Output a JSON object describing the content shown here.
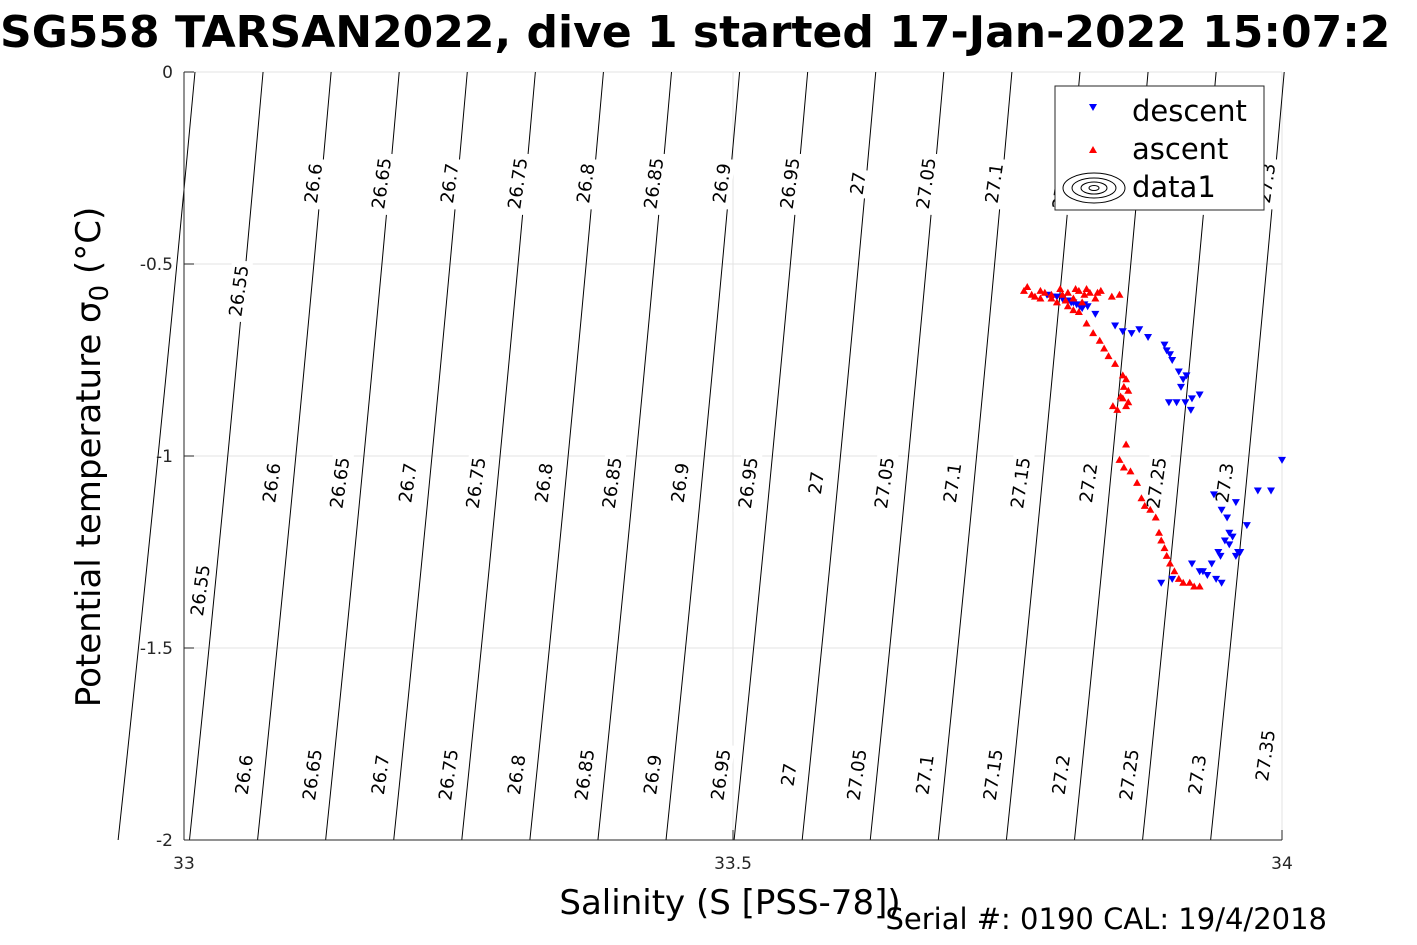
{
  "chart_data": {
    "type": "scatter",
    "title": "SG558 TARSAN2022, dive 1 started 17-Jan-2022 15:07:2",
    "xlabel": "Salinity (S [PSS-78])",
    "ylabel_main": "Potential temperature σ",
    "ylabel_sub": "0",
    "ylabel_unit": " (°C)",
    "xlim": [
      33,
      34
    ],
    "ylim": [
      -2,
      0
    ],
    "xticks": [
      33,
      33.5,
      34
    ],
    "xtick_labels": [
      "33",
      "33.5",
      "34"
    ],
    "yticks": [
      0,
      -0.5,
      -1,
      -1.5,
      -2
    ],
    "ytick_labels": [
      "0",
      "-0.5",
      "-1",
      "-1.5",
      "-2"
    ],
    "grid": true,
    "legend_position": "top-right",
    "legend": [
      "descent",
      "ascent",
      "data1"
    ],
    "contours": {
      "levels": [
        26.55,
        26.6,
        26.65,
        26.7,
        26.75,
        26.8,
        26.85,
        26.9,
        26.95,
        27,
        27.05,
        27.1,
        27.15,
        27.2,
        27.25,
        27.3,
        27.35
      ],
      "level_labels": [
        "26.55",
        "26.6",
        "26.65",
        "26.7",
        "26.75",
        "26.8",
        "26.85",
        "26.9",
        "26.95",
        "27",
        "27.05",
        "27.1",
        "27.15",
        "27.2",
        "27.25",
        "27.3",
        "27.35"
      ],
      "lines": [
        {
          "level": 26.55,
          "x_top": 33.01,
          "x_bottom": 32.94
        },
        {
          "level": 26.6,
          "x_top": 33.072,
          "x_bottom": 33.005
        },
        {
          "level": 26.65,
          "x_top": 33.134,
          "x_bottom": 33.067
        },
        {
          "level": 26.7,
          "x_top": 33.196,
          "x_bottom": 33.129
        },
        {
          "level": 26.75,
          "x_top": 33.258,
          "x_bottom": 33.191
        },
        {
          "level": 26.8,
          "x_top": 33.32,
          "x_bottom": 33.253
        },
        {
          "level": 26.85,
          "x_top": 33.382,
          "x_bottom": 33.315
        },
        {
          "level": 26.9,
          "x_top": 33.444,
          "x_bottom": 33.377
        },
        {
          "level": 26.95,
          "x_top": 33.506,
          "x_bottom": 33.439
        },
        {
          "level": 27,
          "x_top": 33.568,
          "x_bottom": 33.501
        },
        {
          "level": 27.05,
          "x_top": 33.63,
          "x_bottom": 33.563
        },
        {
          "level": 27.1,
          "x_top": 33.692,
          "x_bottom": 33.625
        },
        {
          "level": 27.15,
          "x_top": 33.754,
          "x_bottom": 33.687
        },
        {
          "level": 27.2,
          "x_top": 33.816,
          "x_bottom": 33.749
        },
        {
          "level": 27.25,
          "x_top": 33.878,
          "x_bottom": 33.811
        },
        {
          "level": 27.3,
          "x_top": 33.94,
          "x_bottom": 33.873
        },
        {
          "level": 27.35,
          "x_top": 34.002,
          "x_bottom": 33.935
        }
      ],
      "labels": [
        {
          "text": "26.55",
          "s": 33.05,
          "t": -0.57
        },
        {
          "text": "26.6",
          "s": 33.118,
          "t": -0.29
        },
        {
          "text": "26.65",
          "s": 33.18,
          "t": -0.29
        },
        {
          "text": "26.7",
          "s": 33.242,
          "t": -0.29
        },
        {
          "text": "26.75",
          "s": 33.304,
          "t": -0.29
        },
        {
          "text": "26.8",
          "s": 33.366,
          "t": -0.29
        },
        {
          "text": "26.85",
          "s": 33.428,
          "t": -0.29
        },
        {
          "text": "26.9",
          "s": 33.49,
          "t": -0.29
        },
        {
          "text": "26.95",
          "s": 33.552,
          "t": -0.29
        },
        {
          "text": "27",
          "s": 33.614,
          "t": -0.29
        },
        {
          "text": "27.05",
          "s": 33.676,
          "t": -0.29
        },
        {
          "text": "27.1",
          "s": 33.738,
          "t": -0.29
        },
        {
          "text": "27.15",
          "s": 33.8,
          "t": -0.29
        },
        {
          "text": "27.2",
          "s": 33.862,
          "t": -0.29
        },
        {
          "text": "27.25",
          "s": 33.924,
          "t": -0.29
        },
        {
          "text": "27.3",
          "s": 33.986,
          "t": -0.29
        },
        {
          "text": "26.55",
          "s": 33.015,
          "t": -1.35
        },
        {
          "text": "26.6",
          "s": 33.08,
          "t": -1.07
        },
        {
          "text": "26.65",
          "s": 33.142,
          "t": -1.07
        },
        {
          "text": "26.7",
          "s": 33.204,
          "t": -1.07
        },
        {
          "text": "26.75",
          "s": 33.266,
          "t": -1.07
        },
        {
          "text": "26.8",
          "s": 33.328,
          "t": -1.07
        },
        {
          "text": "26.85",
          "s": 33.39,
          "t": -1.07
        },
        {
          "text": "26.9",
          "s": 33.452,
          "t": -1.07
        },
        {
          "text": "26.95",
          "s": 33.514,
          "t": -1.07
        },
        {
          "text": "27",
          "s": 33.576,
          "t": -1.07
        },
        {
          "text": "27.05",
          "s": 33.638,
          "t": -1.07
        },
        {
          "text": "27.1",
          "s": 33.7,
          "t": -1.07
        },
        {
          "text": "27.15",
          "s": 33.762,
          "t": -1.07
        },
        {
          "text": "27.2",
          "s": 33.824,
          "t": -1.07
        },
        {
          "text": "27.25",
          "s": 33.886,
          "t": -1.07
        },
        {
          "text": "27.3",
          "s": 33.948,
          "t": -1.07
        },
        {
          "text": "26.6",
          "s": 33.055,
          "t": -1.83
        },
        {
          "text": "26.65",
          "s": 33.117,
          "t": -1.83
        },
        {
          "text": "26.7",
          "s": 33.179,
          "t": -1.83
        },
        {
          "text": "26.75",
          "s": 33.241,
          "t": -1.83
        },
        {
          "text": "26.8",
          "s": 33.303,
          "t": -1.83
        },
        {
          "text": "26.85",
          "s": 33.365,
          "t": -1.83
        },
        {
          "text": "26.9",
          "s": 33.427,
          "t": -1.83
        },
        {
          "text": "26.95",
          "s": 33.489,
          "t": -1.83
        },
        {
          "text": "27",
          "s": 33.551,
          "t": -1.83
        },
        {
          "text": "27.05",
          "s": 33.613,
          "t": -1.83
        },
        {
          "text": "27.1",
          "s": 33.675,
          "t": -1.83
        },
        {
          "text": "27.15",
          "s": 33.737,
          "t": -1.83
        },
        {
          "text": "27.2",
          "s": 33.799,
          "t": -1.83
        },
        {
          "text": "27.25",
          "s": 33.861,
          "t": -1.83
        },
        {
          "text": "27.3",
          "s": 33.923,
          "t": -1.83
        },
        {
          "text": "27.35",
          "s": 33.985,
          "t": -1.78
        }
      ]
    },
    "series": [
      {
        "name": "descent",
        "color": "#0000ff",
        "marker": "triangle-down",
        "points": [
          [
            33.795,
            -0.585
          ],
          [
            33.8,
            -0.59
          ],
          [
            33.805,
            -0.595
          ],
          [
            33.81,
            -0.6
          ],
          [
            33.813,
            -0.605
          ],
          [
            33.816,
            -0.61
          ],
          [
            33.818,
            -0.615
          ],
          [
            33.82,
            -0.605
          ],
          [
            33.823,
            -0.61
          ],
          [
            33.808,
            -0.6
          ],
          [
            33.786,
            -0.58
          ],
          [
            33.791,
            -0.585
          ],
          [
            33.83,
            -0.63
          ],
          [
            33.848,
            -0.66
          ],
          [
            33.855,
            -0.675
          ],
          [
            33.863,
            -0.68
          ],
          [
            33.87,
            -0.67
          ],
          [
            33.878,
            -0.69
          ],
          [
            33.893,
            -0.71
          ],
          [
            33.895,
            -0.725
          ],
          [
            33.898,
            -0.735
          ],
          [
            33.9,
            -0.75
          ],
          [
            33.906,
            -0.78
          ],
          [
            33.91,
            -0.8
          ],
          [
            33.913,
            -0.79
          ],
          [
            33.908,
            -0.82
          ],
          [
            33.904,
            -0.86
          ],
          [
            33.912,
            -0.86
          ],
          [
            33.918,
            -0.85
          ],
          [
            33.917,
            -0.88
          ],
          [
            33.925,
            -0.84
          ],
          [
            33.897,
            -0.86
          ],
          [
            33.938,
            -1.1
          ],
          [
            33.945,
            -1.14
          ],
          [
            33.95,
            -1.16
          ],
          [
            33.958,
            -1.12
          ],
          [
            33.968,
            -1.18
          ],
          [
            33.978,
            -1.09
          ],
          [
            33.99,
            -1.09
          ],
          [
            34.0,
            -1.01
          ],
          [
            33.955,
            -1.21
          ],
          [
            33.948,
            -1.22
          ],
          [
            33.96,
            -1.25
          ],
          [
            33.952,
            -1.23
          ],
          [
            33.942,
            -1.25
          ],
          [
            33.936,
            -1.28
          ],
          [
            33.928,
            -1.3
          ],
          [
            33.918,
            -1.28
          ],
          [
            33.925,
            -1.3
          ],
          [
            33.932,
            -1.31
          ],
          [
            33.94,
            -1.32
          ],
          [
            33.945,
            -1.33
          ],
          [
            33.958,
            -1.26
          ],
          [
            33.962,
            -1.25
          ],
          [
            33.944,
            -1.26
          ],
          [
            33.952,
            -1.2
          ],
          [
            33.9,
            -1.32
          ],
          [
            33.89,
            -1.33
          ]
        ]
      },
      {
        "name": "ascent",
        "color": "#ff0000",
        "marker": "triangle-up",
        "points": [
          [
            33.765,
            -0.57
          ],
          [
            33.772,
            -0.58
          ],
          [
            33.775,
            -0.585
          ],
          [
            33.78,
            -0.59
          ],
          [
            33.784,
            -0.575
          ],
          [
            33.79,
            -0.58
          ],
          [
            33.795,
            -0.6
          ],
          [
            33.8,
            -0.58
          ],
          [
            33.805,
            -0.575
          ],
          [
            33.81,
            -0.59
          ],
          [
            33.815,
            -0.57
          ],
          [
            33.82,
            -0.58
          ],
          [
            33.825,
            -0.575
          ],
          [
            33.83,
            -0.59
          ],
          [
            33.835,
            -0.57
          ],
          [
            33.768,
            -0.56
          ],
          [
            33.78,
            -0.57
          ],
          [
            33.798,
            -0.565
          ],
          [
            33.812,
            -0.565
          ],
          [
            33.822,
            -0.565
          ],
          [
            33.832,
            -0.575
          ],
          [
            33.79,
            -0.59
          ],
          [
            33.803,
            -0.595
          ],
          [
            33.818,
            -0.6
          ],
          [
            33.845,
            -0.585
          ],
          [
            33.852,
            -0.58
          ],
          [
            33.805,
            -0.61
          ],
          [
            33.81,
            -0.62
          ],
          [
            33.815,
            -0.625
          ],
          [
            33.822,
            -0.655
          ],
          [
            33.828,
            -0.68
          ],
          [
            33.834,
            -0.7
          ],
          [
            33.838,
            -0.72
          ],
          [
            33.842,
            -0.74
          ],
          [
            33.848,
            -0.76
          ],
          [
            33.855,
            -0.79
          ],
          [
            33.858,
            -0.8
          ],
          [
            33.86,
            -0.83
          ],
          [
            33.855,
            -0.85
          ],
          [
            33.858,
            -0.87
          ],
          [
            33.846,
            -0.87
          ],
          [
            33.85,
            -0.88
          ],
          [
            33.856,
            -0.82
          ],
          [
            33.853,
            -0.845
          ],
          [
            33.86,
            -0.86
          ],
          [
            33.858,
            -0.97
          ],
          [
            33.852,
            -1.01
          ],
          [
            33.856,
            -1.03
          ],
          [
            33.862,
            -1.04
          ],
          [
            33.868,
            -1.07
          ],
          [
            33.872,
            -1.11
          ],
          [
            33.875,
            -1.13
          ],
          [
            33.88,
            -1.14
          ],
          [
            33.885,
            -1.16
          ],
          [
            33.888,
            -1.2
          ],
          [
            33.89,
            -1.22
          ],
          [
            33.893,
            -1.24
          ],
          [
            33.895,
            -1.26
          ],
          [
            33.898,
            -1.28
          ],
          [
            33.902,
            -1.3
          ],
          [
            33.906,
            -1.32
          ],
          [
            33.91,
            -1.33
          ],
          [
            33.916,
            -1.33
          ],
          [
            33.92,
            -1.34
          ],
          [
            33.925,
            -1.34
          ]
        ]
      }
    ]
  },
  "footer": "Serial #: 0190  CAL: 19/4/2018"
}
